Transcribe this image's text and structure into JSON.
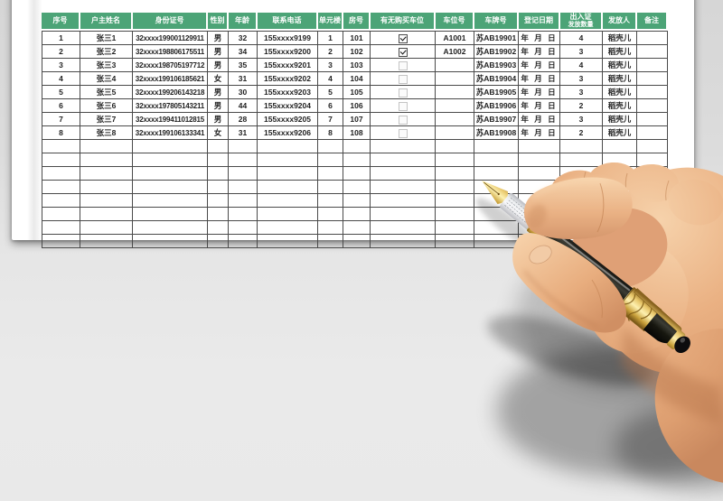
{
  "table": {
    "columns": [
      {
        "key": "no",
        "label": "序号"
      },
      {
        "key": "name",
        "label": "户主姓名"
      },
      {
        "key": "id",
        "label": "身份证号"
      },
      {
        "key": "gender",
        "label": "性别"
      },
      {
        "key": "age",
        "label": "年龄"
      },
      {
        "key": "phone",
        "label": "联系电话"
      },
      {
        "key": "unit",
        "label": "单元楼"
      },
      {
        "key": "room",
        "label": "房号"
      },
      {
        "key": "parking",
        "label": "有无购买车位",
        "type": "checkbox"
      },
      {
        "key": "space",
        "label": "车位号"
      },
      {
        "key": "plate",
        "label": "车牌号"
      },
      {
        "key": "date",
        "label": "登记日期"
      },
      {
        "key": "cards",
        "label": "出入证",
        "label2": "发放数量"
      },
      {
        "key": "issuer",
        "label": "发放人"
      },
      {
        "key": "note",
        "label": "备注"
      }
    ],
    "rows": [
      {
        "no": "1",
        "name": "张三1",
        "id": "32xxxx199001129911",
        "gender": "男",
        "age": "32",
        "phone": "155xxxx9199",
        "unit": "1",
        "room": "101",
        "parking": true,
        "space": "A1001",
        "plate": "苏AB19901",
        "date": "年 月 日",
        "cards": "4",
        "issuer": "稻壳儿",
        "note": ""
      },
      {
        "no": "2",
        "name": "张三2",
        "id": "32xxxx198806175511",
        "gender": "男",
        "age": "34",
        "phone": "155xxxx9200",
        "unit": "2",
        "room": "102",
        "parking": true,
        "space": "A1002",
        "plate": "苏AB19902",
        "date": "年 月 日",
        "cards": "3",
        "issuer": "稻壳儿",
        "note": ""
      },
      {
        "no": "3",
        "name": "张三3",
        "id": "32xxxx198705197712",
        "gender": "男",
        "age": "35",
        "phone": "155xxxx9201",
        "unit": "3",
        "room": "103",
        "parking": false,
        "space": "",
        "plate": "苏AB19903",
        "date": "年 月 日",
        "cards": "4",
        "issuer": "稻壳儿",
        "note": ""
      },
      {
        "no": "4",
        "name": "张三4",
        "id": "32xxxx199106185621",
        "gender": "女",
        "age": "31",
        "phone": "155xxxx9202",
        "unit": "4",
        "room": "104",
        "parking": false,
        "space": "",
        "plate": "苏AB19904",
        "date": "年 月 日",
        "cards": "3",
        "issuer": "稻壳儿",
        "note": ""
      },
      {
        "no": "5",
        "name": "张三5",
        "id": "32xxxx199206143218",
        "gender": "男",
        "age": "30",
        "phone": "155xxxx9203",
        "unit": "5",
        "room": "105",
        "parking": false,
        "space": "",
        "plate": "苏AB19905",
        "date": "年 月 日",
        "cards": "3",
        "issuer": "稻壳儿",
        "note": ""
      },
      {
        "no": "6",
        "name": "张三6",
        "id": "32xxxx197805143211",
        "gender": "男",
        "age": "44",
        "phone": "155xxxx9204",
        "unit": "6",
        "room": "106",
        "parking": false,
        "space": "",
        "plate": "苏AB19906",
        "date": "年 月 日",
        "cards": "2",
        "issuer": "稻壳儿",
        "note": ""
      },
      {
        "no": "7",
        "name": "张三7",
        "id": "32xxxx199411012815",
        "gender": "男",
        "age": "28",
        "phone": "155xxxx9205",
        "unit": "7",
        "room": "107",
        "parking": false,
        "space": "",
        "plate": "苏AB19907",
        "date": "年 月 日",
        "cards": "3",
        "issuer": "稻壳儿",
        "note": ""
      },
      {
        "no": "8",
        "name": "张三8",
        "id": "32xxxx199106133341",
        "gender": "女",
        "age": "31",
        "phone": "155xxxx9206",
        "unit": "8",
        "room": "108",
        "parking": false,
        "space": "",
        "plate": "苏AB19908",
        "date": "年 月 日",
        "cards": "2",
        "issuer": "稻壳儿",
        "note": ""
      }
    ],
    "empty_row_count": 8
  },
  "icons": {
    "checkbox_checked": "checked-checkbox",
    "checkbox_unchecked": "empty-checkbox",
    "hand": "hand-holding-fountain-pen-photo"
  },
  "colors": {
    "header_bg": "#4CA477",
    "header_text": "#ffffff",
    "grid_border": "#4a4a4a",
    "cell_text": "#1f1f1f",
    "sheet": "#ffffff",
    "background": "#e4e4e4",
    "pen_gold": "#d4a93c",
    "pen_black": "#16160f"
  }
}
